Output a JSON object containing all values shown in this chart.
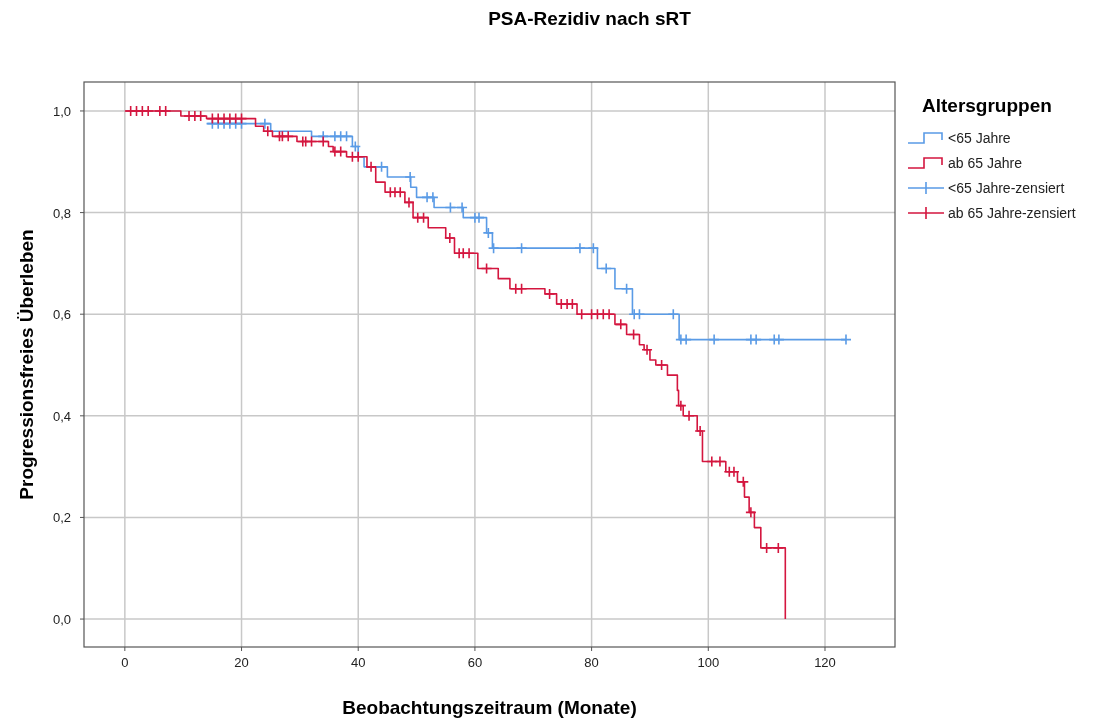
{
  "chart_data": {
    "type": "step",
    "title": "PSA-Rezidiv nach sRT",
    "xlabel": "Beobachtungszeitraum (Monate)",
    "ylabel": "Progressionsfreies Überleben",
    "legend_title": "Altersgruppen",
    "legend": "right",
    "grid": true,
    "marker": "cross",
    "xlim": [
      -7,
      132
    ],
    "xticks": [
      0,
      20,
      40,
      60,
      80,
      100,
      120
    ],
    "ylim": [
      -0.055,
      1.057
    ],
    "yticks": [
      {
        "value": 0,
        "label": "0,0"
      },
      {
        "value": 0.2,
        "label": "0,2"
      },
      {
        "value": 0.4,
        "label": "0,4"
      },
      {
        "value": 0.6,
        "label": "0,6"
      },
      {
        "value": 0.8,
        "label": "0,8"
      },
      {
        "value": 1,
        "label": "1,0"
      }
    ],
    "series": [
      {
        "name": "<65 Jahre",
        "marker": "none",
        "color": "#5a9be6",
        "x": [
          14,
          25,
          32,
          39,
          40,
          41,
          45,
          49,
          50,
          53,
          58,
          62,
          63,
          81,
          84,
          87,
          95,
          123.6
        ],
        "values": [
          0.975,
          0.96,
          0.95,
          0.93,
          0.91,
          0.89,
          0.87,
          0.85,
          0.83,
          0.81,
          0.79,
          0.76,
          0.73,
          0.69,
          0.65,
          0.6,
          0.55,
          0.55
        ]
      },
      {
        "name": "ab 65 Jahre",
        "marker": "none",
        "color": "#d4163f",
        "x": [
          0,
          9.6,
          14,
          22.4,
          23.8,
          25.3,
          29.5,
          34.9,
          35.7,
          38,
          41.5,
          43,
          44.6,
          48,
          49.4,
          52,
          55,
          56.5,
          60.5,
          64,
          66,
          72,
          74,
          77.5,
          84,
          86,
          88.2,
          89,
          90,
          91,
          93,
          94.7,
          94.9,
          95.7,
          98.1,
          99,
          103,
          105,
          106.2,
          107,
          107.9,
          109,
          113.2
        ],
        "values": [
          1,
          0.99,
          0.985,
          0.97,
          0.96,
          0.95,
          0.94,
          0.93,
          0.92,
          0.91,
          0.89,
          0.86,
          0.84,
          0.82,
          0.79,
          0.77,
          0.75,
          0.72,
          0.69,
          0.67,
          0.65,
          0.64,
          0.62,
          0.6,
          0.58,
          0.56,
          0.54,
          0.53,
          0.51,
          0.5,
          0.48,
          0.45,
          0.42,
          0.4,
          0.37,
          0.31,
          0.29,
          0.27,
          0.24,
          0.21,
          0.18,
          0.14,
          0
        ]
      },
      {
        "name": "<65 Jahre-zensiert",
        "type": "scatter",
        "color": "#5a9be6",
        "x": [
          15,
          16,
          17,
          18,
          19,
          20,
          24,
          34,
          36,
          37,
          38,
          39.5,
          44,
          48.9,
          51.8,
          52.8,
          55.8,
          57.8,
          60,
          60.7,
          62.3,
          63.2,
          68,
          78,
          80.3,
          82.5,
          86,
          87.3,
          88.2,
          94,
          95.3,
          96.2,
          101,
          107.3,
          108.2,
          111.3,
          112.1,
          123.6
        ],
        "values": [
          0.975,
          0.975,
          0.975,
          0.975,
          0.975,
          0.975,
          0.975,
          0.95,
          0.95,
          0.95,
          0.95,
          0.93,
          0.89,
          0.87,
          0.83,
          0.83,
          0.81,
          0.81,
          0.79,
          0.79,
          0.76,
          0.73,
          0.73,
          0.73,
          0.73,
          0.69,
          0.65,
          0.6,
          0.6,
          0.6,
          0.55,
          0.55,
          0.55,
          0.55,
          0.55,
          0.55,
          0.55,
          0.55
        ]
      },
      {
        "name": "ab 65 Jahre-zensiert",
        "type": "scatter",
        "color": "#d4163f",
        "x": [
          1,
          2,
          3,
          4,
          6,
          7,
          11,
          12,
          13,
          15,
          16,
          17,
          18,
          19,
          20,
          24.5,
          26.5,
          27,
          28,
          30.5,
          31,
          32,
          34,
          36,
          37,
          39,
          40,
          42.2,
          45.5,
          46.3,
          47.2,
          48.7,
          50.2,
          51.2,
          55.7,
          57.3,
          58,
          59,
          62,
          67,
          68,
          72.8,
          74.8,
          75.8,
          76.7,
          78.3,
          80,
          81,
          82,
          83,
          85,
          87.2,
          89.5,
          92,
          95.3,
          96.7,
          98.6,
          100.6,
          102,
          103.6,
          104.4,
          106,
          107.3,
          110,
          112
        ],
        "values": [
          1,
          1,
          1,
          1,
          1,
          1,
          0.99,
          0.99,
          0.99,
          0.985,
          0.985,
          0.985,
          0.985,
          0.985,
          0.985,
          0.96,
          0.95,
          0.95,
          0.95,
          0.94,
          0.94,
          0.94,
          0.94,
          0.92,
          0.92,
          0.91,
          0.91,
          0.89,
          0.84,
          0.84,
          0.84,
          0.82,
          0.79,
          0.79,
          0.75,
          0.72,
          0.72,
          0.72,
          0.69,
          0.65,
          0.65,
          0.64,
          0.62,
          0.62,
          0.62,
          0.6,
          0.6,
          0.6,
          0.6,
          0.6,
          0.58,
          0.56,
          0.53,
          0.5,
          0.42,
          0.4,
          0.37,
          0.31,
          0.31,
          0.29,
          0.29,
          0.27,
          0.21,
          0.14,
          0.14
        ]
      }
    ]
  }
}
